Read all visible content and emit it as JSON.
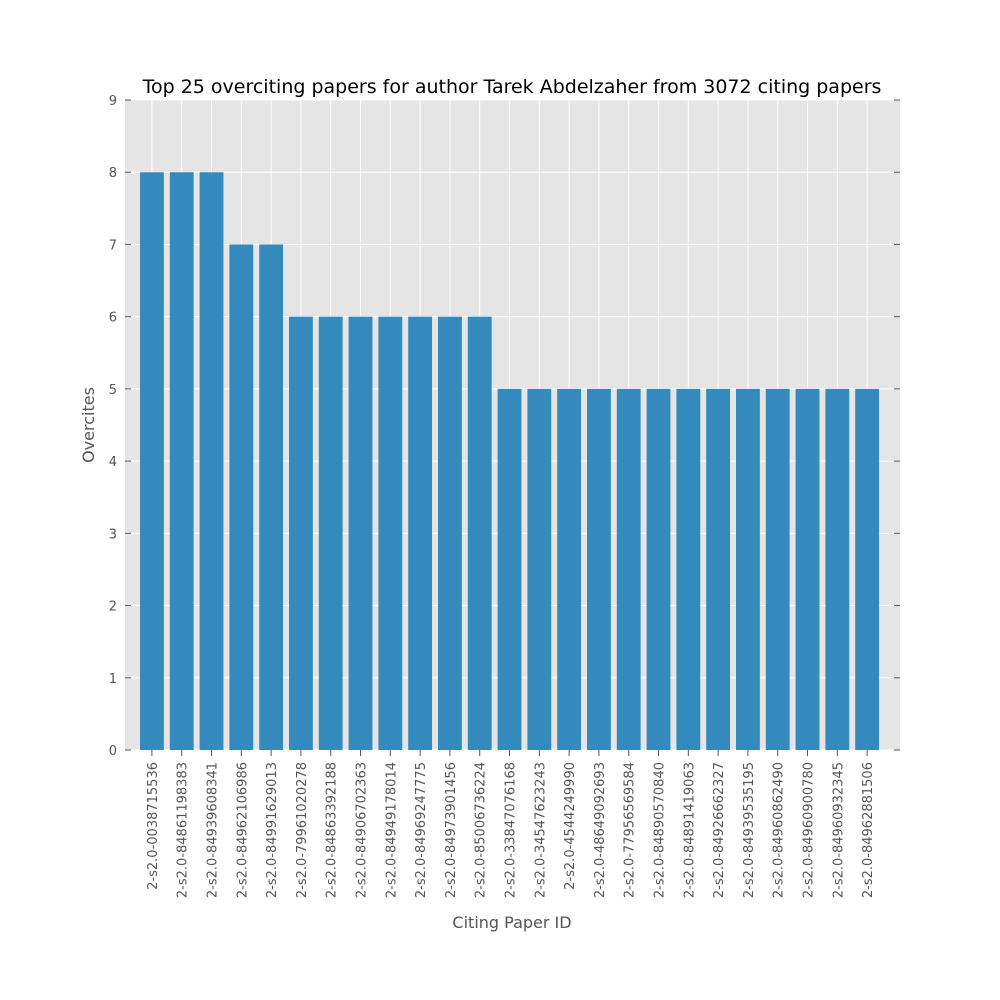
{
  "colors": {
    "plot_background": "#e5e5e5",
    "bar": "#348abd",
    "grid": "#ffffff",
    "tick_text": "#555555"
  },
  "chart_data": {
    "type": "bar",
    "title": "Top 25 overciting papers for author Tarek Abdelzaher from 3072 citing papers",
    "xlabel": "Citing Paper ID",
    "ylabel": "Overcites",
    "ylim": [
      0,
      9
    ],
    "yticks": [
      "0",
      "1",
      "2",
      "3",
      "4",
      "5",
      "6",
      "7",
      "8",
      "9"
    ],
    "grid": true,
    "categories": [
      "2-s2.0-0038715536",
      "2-s2.0-84861198383",
      "2-s2.0-84939608341",
      "2-s2.0-84962106986",
      "2-s2.0-84991629013",
      "2-s2.0-79961020278",
      "2-s2.0-84863392188",
      "2-s2.0-84906702363",
      "2-s2.0-84949178014",
      "2-s2.0-84969247775",
      "2-s2.0-84973901456",
      "2-s2.0-85006736224",
      "2-s2.0-33847076168",
      "2-s2.0-34547623243",
      "2-s2.0-4544249990",
      "2-s2.0-48649092693",
      "2-s2.0-77956569584",
      "2-s2.0-84890570840",
      "2-s2.0-84891419063",
      "2-s2.0-84926662327",
      "2-s2.0-84939535195",
      "2-s2.0-84960862490",
      "2-s2.0-84960900780",
      "2-s2.0-84960932345",
      "2-s2.0-84962881506"
    ],
    "values": [
      8,
      8,
      8,
      7,
      7,
      6,
      6,
      6,
      6,
      6,
      6,
      6,
      5,
      5,
      5,
      5,
      5,
      5,
      5,
      5,
      5,
      5,
      5,
      5,
      5
    ]
  }
}
